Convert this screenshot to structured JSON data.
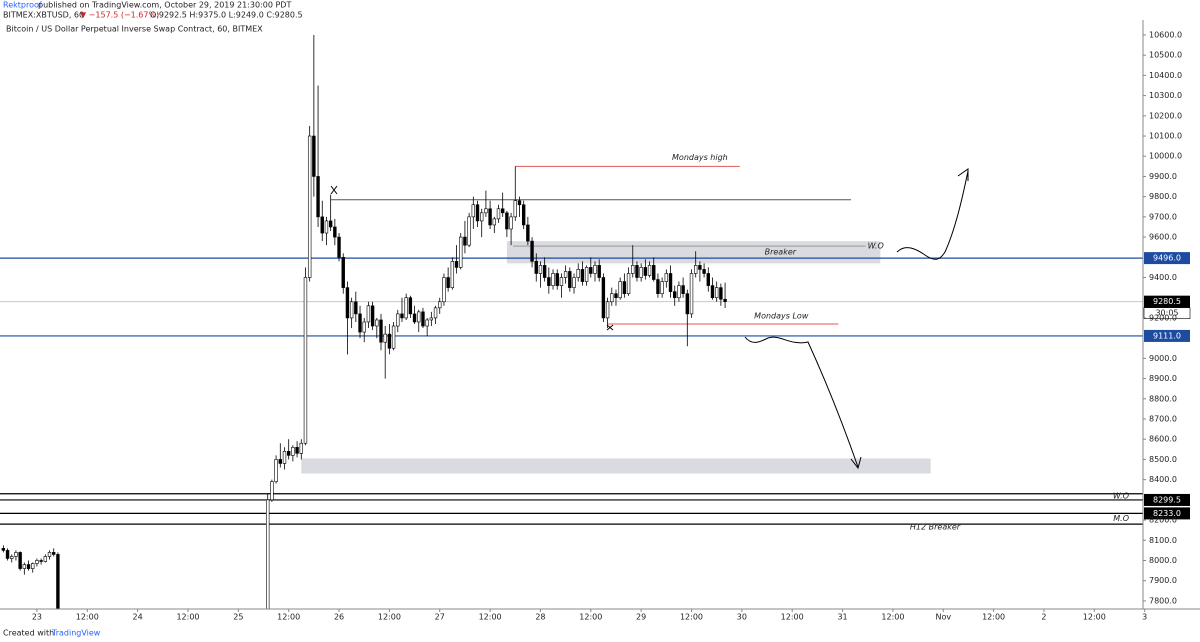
{
  "header": {
    "author": "Rektproof",
    "published": "published on TradingView.com, October 29, 2019 21:30:00 PDT",
    "symbol": "BITMEX:XBTUSD, 60",
    "change": "▼ −157.5 (−1.67%)",
    "ohlc": "O:9292.5 H:9375.0 L:9249.0 C:9280.5"
  },
  "footer": {
    "text": "Created with",
    "brand": "TradingView"
  },
  "chart_data": {
    "type": "candlestick",
    "title": "Bitcoin / US Dollar Perpetual Inverse Swap Contract, 60, BITMEX",
    "up_color": "#ffffff",
    "down_color": "#000000",
    "outline_color": "#000000",
    "xlim": [
      -8.8,
      263.6
    ],
    "ylim": [
      7760,
      10674
    ],
    "xticks": [
      {
        "value": 0,
        "label": "23"
      },
      {
        "value": 12,
        "label": "12:00"
      },
      {
        "value": 24,
        "label": "24"
      },
      {
        "value": 36,
        "label": "12:00"
      },
      {
        "value": 48,
        "label": "25"
      },
      {
        "value": 60,
        "label": "12:00"
      },
      {
        "value": 72,
        "label": "26"
      },
      {
        "value": 84,
        "label": "12:00"
      },
      {
        "value": 96,
        "label": "27"
      },
      {
        "value": 108,
        "label": "12:00"
      },
      {
        "value": 120,
        "label": "28"
      },
      {
        "value": 132,
        "label": "12:00"
      },
      {
        "value": 144,
        "label": "29"
      },
      {
        "value": 156,
        "label": "12:00"
      },
      {
        "value": 168,
        "label": "30"
      },
      {
        "value": 180,
        "label": "12:00"
      },
      {
        "value": 192,
        "label": "31"
      },
      {
        "value": 204,
        "label": "12:00"
      },
      {
        "value": 216,
        "label": "Nov"
      },
      {
        "value": 228,
        "label": "12:00"
      },
      {
        "value": 240,
        "label": "2"
      },
      {
        "value": 252,
        "label": "12:00"
      },
      {
        "value": 264,
        "label": "3"
      }
    ],
    "yticks": [
      {
        "value": 10600,
        "label": "10600.0"
      },
      {
        "value": 10500,
        "label": "10500.0"
      },
      {
        "value": 10400,
        "label": "10400.0"
      },
      {
        "value": 10300,
        "label": "10300.0"
      },
      {
        "value": 10200,
        "label": "10200.0"
      },
      {
        "value": 10100,
        "label": "10100.0"
      },
      {
        "value": 10000,
        "label": "10000.0"
      },
      {
        "value": 9900,
        "label": "9900.0"
      },
      {
        "value": 9800,
        "label": "9800.0"
      },
      {
        "value": 9700,
        "label": "9700.0"
      },
      {
        "value": 9600,
        "label": "9600.0"
      },
      {
        "value": 9400,
        "label": "9400.0"
      },
      {
        "value": 9200,
        "label": "9200.0"
      },
      {
        "value": 9000,
        "label": "9000.0"
      },
      {
        "value": 8900,
        "label": "8900.0"
      },
      {
        "value": 8800,
        "label": "8800.0"
      },
      {
        "value": 8700,
        "label": "8700.0"
      },
      {
        "value": 8600,
        "label": "8600.0"
      },
      {
        "value": 8500,
        "label": "8500.0"
      },
      {
        "value": 8400,
        "label": "8400.0"
      },
      {
        "value": 8200,
        "label": "8200.0"
      },
      {
        "value": 8100,
        "label": "8100.0"
      },
      {
        "value": 8000,
        "label": "8000.0"
      },
      {
        "value": 7900,
        "label": "7900.0"
      },
      {
        "value": 7800,
        "label": "7800.0"
      }
    ],
    "series": [
      {
        "name": "XBTUSD",
        "x": [
          -8,
          -7,
          -6,
          -5,
          -4,
          -3,
          -2,
          -1,
          0,
          1,
          2,
          3,
          4,
          5,
          55,
          56,
          57,
          58,
          59,
          60,
          61,
          62,
          63,
          64,
          65,
          66,
          67,
          68,
          69,
          70,
          71,
          72,
          73,
          74,
          75,
          76,
          77,
          78,
          79,
          80,
          81,
          82,
          83,
          84,
          85,
          86,
          87,
          88,
          89,
          90,
          91,
          92,
          93,
          94,
          95,
          96,
          97,
          98,
          99,
          100,
          101,
          102,
          103,
          104,
          105,
          106,
          107,
          108,
          109,
          110,
          111,
          112,
          113,
          114,
          115,
          116,
          117,
          118,
          119,
          120,
          121,
          122,
          123,
          124,
          125,
          126,
          127,
          128,
          129,
          130,
          131,
          132,
          133,
          134,
          135,
          136,
          137,
          138,
          139,
          140,
          141,
          142,
          143,
          144,
          145,
          146,
          147,
          148,
          149,
          150,
          151,
          152,
          153,
          154,
          155,
          156,
          157,
          158,
          159,
          160,
          161,
          162,
          163,
          164,
          165
        ],
        "ohlc": [
          [
            8060,
            8075,
            8040,
            8050
          ],
          [
            8050,
            8060,
            8000,
            8010
          ],
          [
            8010,
            8030,
            7990,
            8020
          ],
          [
            8020,
            8050,
            8000,
            8040
          ],
          [
            8040,
            8045,
            7950,
            7960
          ],
          [
            7960,
            7990,
            7930,
            7980
          ],
          [
            7980,
            8000,
            7950,
            7960
          ],
          [
            7960,
            7990,
            7940,
            7985
          ],
          [
            7985,
            8010,
            7970,
            8000
          ],
          [
            8000,
            8010,
            7980,
            7995
          ],
          [
            7995,
            8030,
            7990,
            8020
          ],
          [
            8020,
            8050,
            8005,
            8040
          ],
          [
            8040,
            8060,
            8020,
            8030
          ],
          [
            8030,
            8040,
            7600,
            7650
          ],
          [
            7750,
            8330,
            7500,
            8300
          ],
          [
            8300,
            8400,
            8290,
            8390
          ],
          [
            8390,
            8520,
            8380,
            8500
          ],
          [
            8500,
            8580,
            8460,
            8480
          ],
          [
            8480,
            8560,
            8450,
            8540
          ],
          [
            8540,
            8600,
            8500,
            8520
          ],
          [
            8520,
            8570,
            8490,
            8560
          ],
          [
            8560,
            8590,
            8510,
            8530
          ],
          [
            8530,
            8600,
            8500,
            8580
          ],
          [
            8580,
            9450,
            8570,
            9400
          ],
          [
            9400,
            10150,
            9380,
            10100
          ],
          [
            10100,
            10600,
            9800,
            9900
          ],
          [
            9900,
            10350,
            9650,
            9700
          ],
          [
            9700,
            9780,
            9580,
            9620
          ],
          [
            9620,
            9700,
            9560,
            9680
          ],
          [
            9680,
            9810,
            9630,
            9650
          ],
          [
            9650,
            9690,
            9560,
            9600
          ],
          [
            9600,
            9620,
            9480,
            9500
          ],
          [
            9500,
            9520,
            9320,
            9350
          ],
          [
            9350,
            9380,
            9020,
            9200
          ],
          [
            9200,
            9300,
            9150,
            9280
          ],
          [
            9280,
            9330,
            9180,
            9220
          ],
          [
            9220,
            9260,
            9100,
            9130
          ],
          [
            9130,
            9200,
            9080,
            9180
          ],
          [
            9180,
            9280,
            9150,
            9260
          ],
          [
            9260,
            9280,
            9140,
            9160
          ],
          [
            9160,
            9200,
            9100,
            9190
          ],
          [
            9190,
            9220,
            9040,
            9080
          ],
          [
            9080,
            9160,
            8900,
            9120
          ],
          [
            9120,
            9170,
            9020,
            9050
          ],
          [
            9050,
            9180,
            9040,
            9160
          ],
          [
            9160,
            9240,
            9130,
            9220
          ],
          [
            9220,
            9300,
            9180,
            9200
          ],
          [
            9200,
            9320,
            9190,
            9300
          ],
          [
            9300,
            9310,
            9200,
            9220
          ],
          [
            9220,
            9260,
            9170,
            9180
          ],
          [
            9180,
            9240,
            9130,
            9230
          ],
          [
            9230,
            9250,
            9150,
            9160
          ],
          [
            9160,
            9200,
            9110,
            9190
          ],
          [
            9190,
            9230,
            9160,
            9200
          ],
          [
            9200,
            9260,
            9170,
            9250
          ],
          [
            9250,
            9300,
            9220,
            9280
          ],
          [
            9280,
            9420,
            9260,
            9400
          ],
          [
            9400,
            9450,
            9330,
            9350
          ],
          [
            9350,
            9500,
            9340,
            9480
          ],
          [
            9480,
            9560,
            9420,
            9450
          ],
          [
            9450,
            9620,
            9440,
            9600
          ],
          [
            9600,
            9680,
            9520,
            9560
          ],
          [
            9560,
            9720,
            9550,
            9700
          ],
          [
            9700,
            9800,
            9640,
            9760
          ],
          [
            9760,
            9780,
            9650,
            9680
          ],
          [
            9680,
            9740,
            9600,
            9720
          ],
          [
            9720,
            9830,
            9700,
            9740
          ],
          [
            9740,
            9780,
            9640,
            9660
          ],
          [
            9660,
            9700,
            9620,
            9690
          ],
          [
            9690,
            9760,
            9670,
            9740
          ],
          [
            9740,
            9820,
            9700,
            9720
          ],
          [
            9720,
            9730,
            9600,
            9640
          ],
          [
            9640,
            9720,
            9560,
            9700
          ],
          [
            9700,
            9950,
            9680,
            9780
          ],
          [
            9780,
            9800,
            9700,
            9760
          ],
          [
            9760,
            9780,
            9640,
            9660
          ],
          [
            9660,
            9700,
            9560,
            9580
          ],
          [
            9580,
            9600,
            9450,
            9480
          ],
          [
            9480,
            9520,
            9380,
            9420
          ],
          [
            9420,
            9480,
            9350,
            9460
          ],
          [
            9460,
            9500,
            9380,
            9400
          ],
          [
            9400,
            9450,
            9320,
            9360
          ],
          [
            9360,
            9440,
            9340,
            9420
          ],
          [
            9420,
            9440,
            9340,
            9360
          ],
          [
            9360,
            9420,
            9300,
            9400
          ],
          [
            9400,
            9460,
            9370,
            9430
          ],
          [
            9430,
            9450,
            9330,
            9350
          ],
          [
            9350,
            9420,
            9320,
            9400
          ],
          [
            9400,
            9470,
            9380,
            9440
          ],
          [
            9440,
            9480,
            9360,
            9380
          ],
          [
            9380,
            9460,
            9360,
            9450
          ],
          [
            9450,
            9500,
            9400,
            9420
          ],
          [
            9420,
            9480,
            9380,
            9460
          ],
          [
            9460,
            9490,
            9380,
            9400
          ],
          [
            9400,
            9420,
            9180,
            9200
          ],
          [
            9200,
            9300,
            9150,
            9280
          ],
          [
            9280,
            9350,
            9260,
            9320
          ],
          [
            9320,
            9340,
            9260,
            9300
          ],
          [
            9300,
            9400,
            9290,
            9380
          ],
          [
            9380,
            9420,
            9300,
            9320
          ],
          [
            9320,
            9450,
            9310,
            9420
          ],
          [
            9420,
            9560,
            9400,
            9460
          ],
          [
            9460,
            9480,
            9380,
            9400
          ],
          [
            9400,
            9470,
            9380,
            9450
          ],
          [
            9450,
            9490,
            9390,
            9410
          ],
          [
            9410,
            9480,
            9400,
            9460
          ],
          [
            9460,
            9500,
            9380,
            9390
          ],
          [
            9390,
            9420,
            9300,
            9320
          ],
          [
            9320,
            9400,
            9300,
            9380
          ],
          [
            9380,
            9440,
            9350,
            9420
          ],
          [
            9420,
            9460,
            9300,
            9330
          ],
          [
            9330,
            9360,
            9260,
            9300
          ],
          [
            9300,
            9380,
            9280,
            9360
          ],
          [
            9360,
            9400,
            9300,
            9320
          ],
          [
            9320,
            9340,
            9060,
            9220
          ],
          [
            9220,
            9440,
            9200,
            9420
          ],
          [
            9420,
            9530,
            9400,
            9460
          ],
          [
            9460,
            9480,
            9380,
            9440
          ],
          [
            9440,
            9470,
            9400,
            9420
          ],
          [
            9420,
            9450,
            9330,
            9360
          ],
          [
            9360,
            9400,
            9290,
            9300
          ],
          [
            9300,
            9380,
            9280,
            9350
          ],
          [
            9350,
            9370,
            9260,
            9292.5
          ],
          [
            9292.5,
            9375,
            9249,
            9280.5
          ]
        ]
      }
    ],
    "levels": [
      {
        "value": 9496.0,
        "label": "9496.0",
        "color": "#1c4ba0",
        "badge_color": "#1c4ba0"
      },
      {
        "value": 9111.0,
        "label": "9111.0",
        "color": "#1c4ba0",
        "badge_color": "#1c4ba0"
      },
      {
        "value": 9280.5,
        "label": "9280.5",
        "color": "#c8c8c8",
        "badge_color": "#000000",
        "countdown": "30:05"
      },
      {
        "value": 8330,
        "color": "#000000"
      },
      {
        "value": 8299.5,
        "label": "8299.5",
        "color": "#000000",
        "badge_color": "#000000",
        "text": "W.O"
      },
      {
        "value": 8233.0,
        "label": "8233.0",
        "color": "#000000",
        "badge_color": "#000000",
        "text": "M.O"
      },
      {
        "value": 8180,
        "color": "#000000",
        "text": "H12 Breaker"
      }
    ],
    "annotations": [
      {
        "type": "line",
        "value": 9950,
        "x": [
          114,
          167.5
        ],
        "color": "#e05a5a",
        "text": "Mondays high"
      },
      {
        "type": "line",
        "value": 9785,
        "x": [
          70,
          194
        ],
        "color": "#555555"
      },
      {
        "type": "box",
        "value": [
          9470,
          9580
        ],
        "x": [
          112,
          201
        ],
        "color": "#dadbe0",
        "text": "Breaker"
      },
      {
        "type": "line",
        "value": 9555,
        "x": [
          113.5,
          197.5
        ],
        "color": "#9a9a9a",
        "text": "W.O"
      },
      {
        "type": "line",
        "value": 9170,
        "x": [
          136,
          191
        ],
        "color": "#e05a5a",
        "text": "Mondays Low"
      },
      {
        "type": "box",
        "value": [
          8430,
          8505
        ],
        "x": [
          63,
          213
        ],
        "color": "#dadbe0"
      }
    ]
  }
}
